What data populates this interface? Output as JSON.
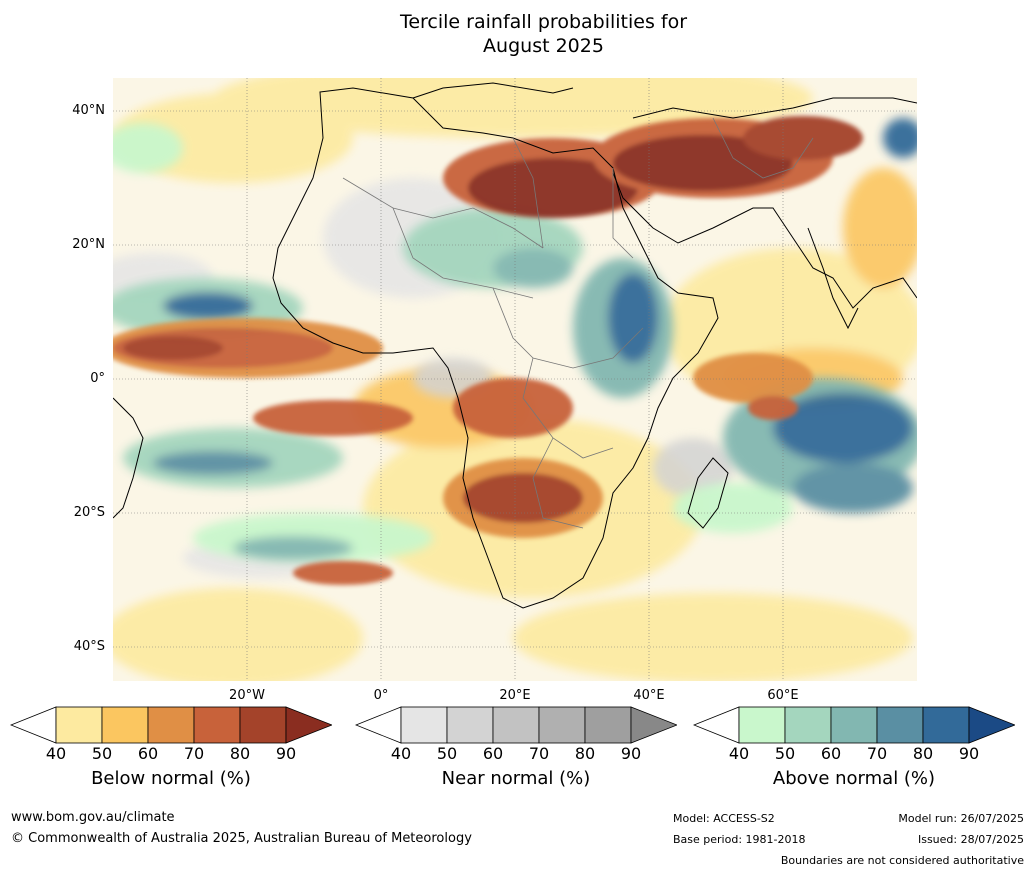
{
  "title": {
    "line1": "Tercile rainfall probabilities for",
    "line2": "August 2025"
  },
  "map": {
    "lat_labels": [
      "40°N",
      "20°N",
      "0°",
      "20°S",
      "40°S"
    ],
    "lon_labels": [
      "20°W",
      "0°",
      "20°E",
      "40°E",
      "60°E"
    ]
  },
  "colorbars": [
    {
      "name": "below",
      "ticks": [
        "40",
        "50",
        "60",
        "70",
        "80",
        "90"
      ],
      "title": "Below normal (%)",
      "colors": [
        "#ffffff",
        "#fdeaa0",
        "#fbc660",
        "#e08f45",
        "#c8623a",
        "#a4432a",
        "#8a2d20"
      ]
    },
    {
      "name": "near",
      "ticks": [
        "40",
        "50",
        "60",
        "70",
        "80",
        "90"
      ],
      "title": "Near normal (%)",
      "colors": [
        "#ffffff",
        "#e5e5e5",
        "#d3d3d3",
        "#c2c2c2",
        "#b0b0b0",
        "#9f9f9f",
        "#888888"
      ]
    },
    {
      "name": "above",
      "ticks": [
        "40",
        "50",
        "60",
        "70",
        "80",
        "90"
      ],
      "title": "Above normal (%)",
      "colors": [
        "#ffffff",
        "#c9f7cc",
        "#a4d6be",
        "#82b7b1",
        "#5a8fa3",
        "#326a99",
        "#1b4a85"
      ]
    }
  ],
  "footer": {
    "website": "www.bom.gov.au/climate",
    "copyright": "© Commonwealth of Australia 2025, Australian Bureau of Meteorology",
    "model": "Model: ACCESS-S2",
    "base_period": "Base period: 1981-2018",
    "model_run": "Model run: 26/07/2025",
    "issued": "Issued: 28/07/2025",
    "disclaimer": "Boundaries are not considered authoritative"
  }
}
